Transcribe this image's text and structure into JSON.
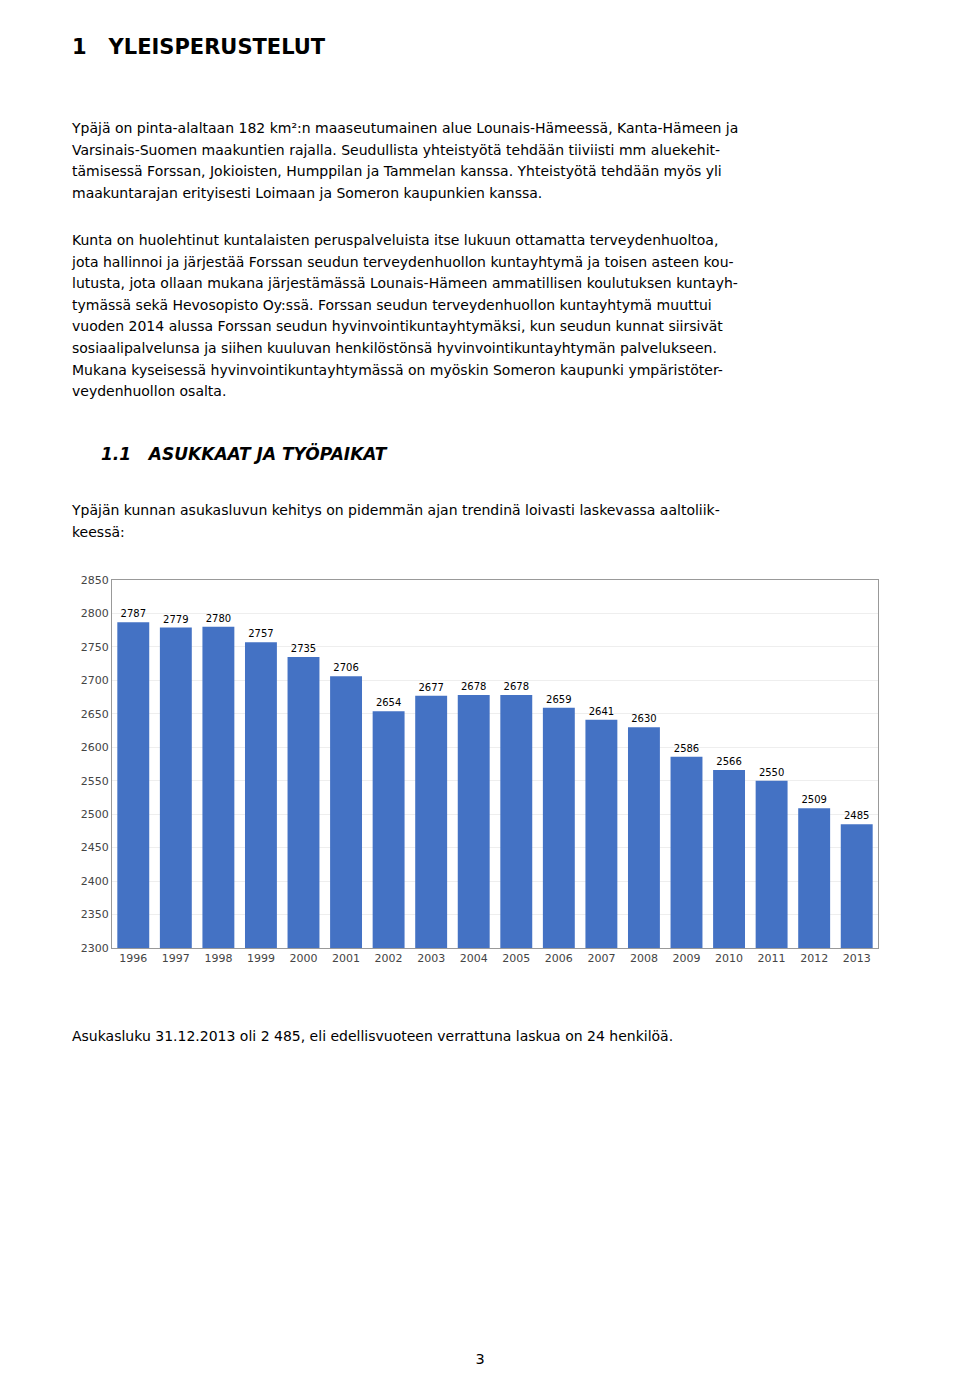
{
  "chart_data": {
    "type": "bar",
    "title": "1   YLEISPERUSTELUT",
    "subtitle": "1.1   ASUKKAAT JA TYÖPAIKAT",
    "annotations": [
      "Ypäjä on pinta-alaltaan 182 km²:n maaseutumainen alue Lounais-Hämeessä, Kanta-Hämeen ja\nVarsinais-Suomen maakuntien rajalla. Seudullista yhteistyötä tehdään tiiviisti mm aluekehit-\ntämisessä Forssan, Jokioisten, Humppilan ja Tammelan kanssa. Yhteistyötä tehdään myös yli\nmaakuntarajan erityisesti Loimaan ja Someron kaupunkien kanssa.",
      "Kunta on huolehtinut kuntalaisten peruspalveluista itse lukuun ottamatta terveydenhuoltoa,\njota hallinnoi ja järjestää Forssan seudun terveydenhuollon kuntayhtymä ja toisen asteen kou-\nlutusta, jota ollaan mukana järjestämässä Lounais-Hämeen ammatillisen koulutuksen kuntayh-\ntymässä sekä Hevosopisto Oy:ssä. Forssan seudun terveydenhuollon kuntayhtymä muuttui\nvuoden 2014 alussa Forssan seudun hyvinvointikuntayhtymäksi, kun seudun kunnat siirsivät\nsosiaalipalvelunsa ja siihen kuuluvan henkilöstönsä hyvinvointikuntayhtymän palvelukseen.\nMukana kyseisessä hyvinvointikuntayhtymässä on myöskin Someron kaupunki ympäristöter-\nveydenhuollon osalta.",
      "Ypäjän kunnan asukasluvun kehitys on pidemmän ajan trendinä loivasti laskevassa aaltoliik-\nkeessä:",
      "Asukasluku 31.12.2013 oli 2 485, eli edellisvuoteen verrattuna laskua on 24 henkilöä.",
      "3"
    ],
    "categories": [
      "1996",
      "1997",
      "1998",
      "1999",
      "2000",
      "2001",
      "2002",
      "2003",
      "2004",
      "2005",
      "2006",
      "2007",
      "2008",
      "2009",
      "2010",
      "2011",
      "2012",
      "2013"
    ],
    "values": [
      2787,
      2779,
      2780,
      2757,
      2735,
      2706,
      2654,
      2677,
      2678,
      2678,
      2659,
      2641,
      2630,
      2586,
      2566,
      2550,
      2509,
      2485
    ],
    "color": "#4472C4",
    "ylim": [
      2300,
      2850
    ],
    "yticks": [
      2300,
      2350,
      2400,
      2450,
      2500,
      2550,
      2600,
      2650,
      2700,
      2750,
      2800,
      2850
    ],
    "grid": true,
    "data_labels": true
  }
}
